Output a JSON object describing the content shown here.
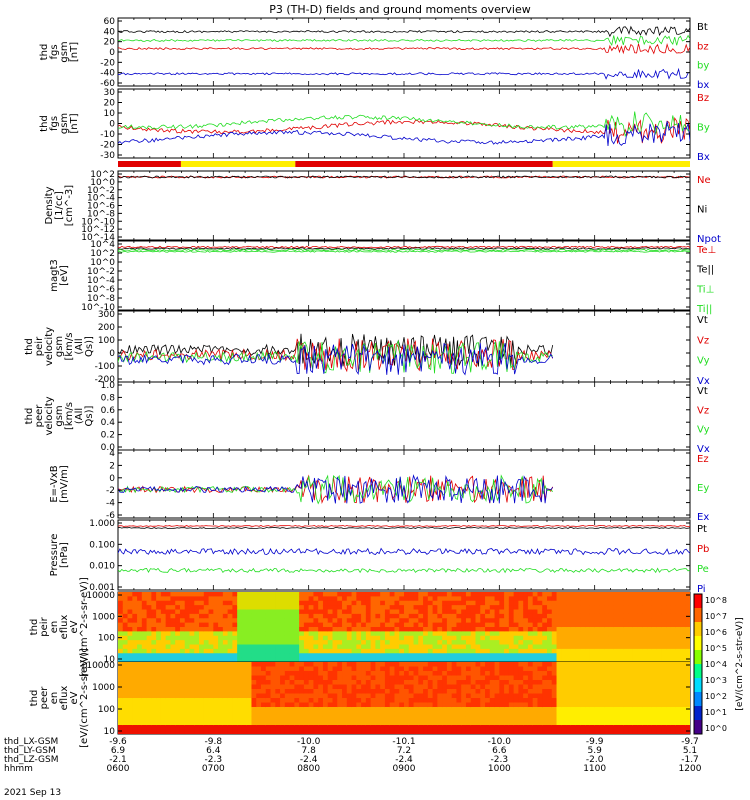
{
  "title": "P3 (TH-D) fields and ground moments overview",
  "date_label": "2021 Sep 13",
  "colors": {
    "black": "#000000",
    "red": "#e00000",
    "green": "#22dd22",
    "blue": "#0000cc",
    "yellow": "#ffee00"
  },
  "colorbar_label": "[eV/(cm^2-s-str-eV)]",
  "colorbar_ticks": [
    "10^8",
    "10^7",
    "10^6",
    "10^5",
    "10^4",
    "10^3",
    "10^2",
    "10^1",
    "10^0"
  ],
  "time_axis": {
    "row_labels": [
      "thd_LX-GSM",
      "thd_LY-GSM",
      "thd_LZ-GSM",
      "hhmm"
    ],
    "ticks": [
      {
        "lx": "-9.6",
        "ly": "6.9",
        "lz": "-2.1",
        "hhmm": "0600"
      },
      {
        "lx": "-9.8",
        "ly": "6.4",
        "lz": "-2.3",
        "hhmm": "0700"
      },
      {
        "lx": "-10.0",
        "ly": "7.8",
        "lz": "-2.4",
        "hhmm": "0800"
      },
      {
        "lx": "-10.1",
        "ly": "7.2",
        "lz": "-2.4",
        "hhmm": "0900"
      },
      {
        "lx": "-10.0",
        "ly": "6.6",
        "lz": "-2.3",
        "hhmm": "1000"
      },
      {
        "lx": "-9.9",
        "ly": "5.9",
        "lz": "-2.0",
        "hhmm": "1100"
      },
      {
        "lx": "-9.7",
        "ly": "5.1",
        "lz": "-1.7",
        "hhmm": "1200"
      }
    ]
  },
  "chart_data": [
    {
      "type": "line",
      "ylabel": "thd fgs gsm [nT]",
      "yticks": [
        "60",
        "40",
        "20",
        "0",
        "-20",
        "-40",
        "-60"
      ],
      "ylim": [
        -60,
        60
      ],
      "series": [
        {
          "name": "Bt",
          "color": "#000000"
        },
        {
          "name": "bz",
          "color": "#e00000"
        },
        {
          "name": "by",
          "color": "#22dd22"
        },
        {
          "name": "bx",
          "color": "#0000cc"
        }
      ]
    },
    {
      "type": "line",
      "ylabel": "thd fgs gsm [nT]",
      "yticks": [
        "30",
        "20",
        "10",
        "0",
        "-10",
        "-20",
        "-30"
      ],
      "ylim": [
        -30,
        30
      ],
      "series": [
        {
          "name": "Bz",
          "color": "#e00000"
        },
        {
          "name": "By",
          "color": "#22dd22"
        },
        {
          "name": "Bx",
          "color": "#0000cc"
        }
      ]
    },
    {
      "type": "line",
      "ylabel": "Density [1/cc] [cm^-3]",
      "yticks": [
        "10^2",
        "10^0",
        "10^-2",
        "10^-4",
        "10^-6",
        "10^-8",
        "10^-10",
        "10^-12",
        "10^-14"
      ],
      "scale": "log",
      "series": [
        {
          "name": "Ne",
          "color": "#e00000"
        },
        {
          "name": "Ni",
          "color": "#000000"
        },
        {
          "name": "Npot",
          "color": "#0000cc"
        }
      ]
    },
    {
      "type": "line",
      "ylabel": "magt3 [eV]",
      "yticks": [
        "10^4",
        "10^2",
        "10^0",
        "10^-2",
        "10^-4",
        "10^-6",
        "10^-8",
        "10^-10"
      ],
      "scale": "log",
      "series": [
        {
          "name": "Te⊥",
          "color": "#e00000"
        },
        {
          "name": "Te||",
          "color": "#000000"
        },
        {
          "name": "Ti⊥",
          "color": "#22dd22"
        },
        {
          "name": "Ti||",
          "color": "#22dd22"
        }
      ]
    },
    {
      "type": "line",
      "ylabel": "thd peir velocity gsm [km/s (All Qs)]",
      "yticks": [
        "300",
        "200",
        "100",
        "0",
        "-100",
        "-200"
      ],
      "ylim": [
        -200,
        300
      ],
      "series": [
        {
          "name": "Vt",
          "color": "#000000"
        },
        {
          "name": "Vz",
          "color": "#e00000"
        },
        {
          "name": "Vy",
          "color": "#22dd22"
        },
        {
          "name": "Vx",
          "color": "#0000cc"
        }
      ]
    },
    {
      "type": "line",
      "ylabel": "thd peer velocity gsm [km/s (All Qs)]",
      "yticks": [
        "1.0",
        "0.8",
        "0.6",
        "0.4",
        "0.2",
        "0.0"
      ],
      "ylim": [
        0,
        1
      ],
      "series": [
        {
          "name": "Vt",
          "color": "#000000"
        },
        {
          "name": "Vz",
          "color": "#e00000"
        },
        {
          "name": "Vy",
          "color": "#22dd22"
        },
        {
          "name": "Vx",
          "color": "#0000cc"
        }
      ]
    },
    {
      "type": "line",
      "ylabel": "E=-VxB [mV/m]",
      "yticks": [
        "4",
        "2",
        "0",
        "-2",
        "-4",
        "-6"
      ],
      "ylim": [
        -6,
        4
      ],
      "series": [
        {
          "name": "Ez",
          "color": "#e00000"
        },
        {
          "name": "Ey",
          "color": "#22dd22"
        },
        {
          "name": "Ex",
          "color": "#0000cc"
        }
      ]
    },
    {
      "type": "line",
      "ylabel": "Pressure [nPa]",
      "yticks": [
        "1.000",
        "0.100",
        "0.010",
        "0.001"
      ],
      "scale": "log",
      "series": [
        {
          "name": "Pt",
          "color": "#000000"
        },
        {
          "name": "Pb",
          "color": "#e00000"
        },
        {
          "name": "Pe",
          "color": "#22dd22"
        },
        {
          "name": "Pi",
          "color": "#0000cc"
        }
      ]
    },
    {
      "type": "heatmap",
      "ylabel": "thd peir en eflux eV [eV/(cm^2-s-sr-eV)]",
      "yticks": [
        "10000",
        "1000",
        "100",
        "10"
      ],
      "scale": "log"
    },
    {
      "type": "heatmap",
      "ylabel": "thd peer en eflux eV [eV/(cm^2-s-sr-eV)]",
      "yticks": [
        "10000",
        "1000",
        "100",
        "10"
      ],
      "scale": "log"
    }
  ]
}
